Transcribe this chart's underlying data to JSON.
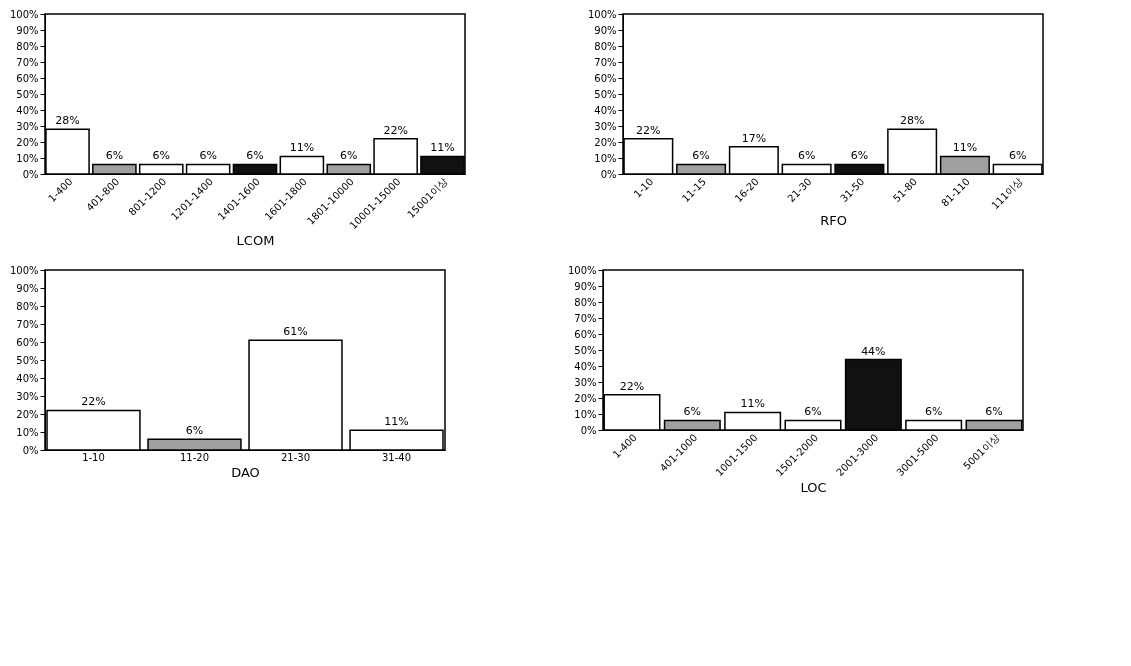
{
  "chart_data": [
    {
      "type": "bar",
      "xlabel": "LCOM",
      "categories": [
        "1-400",
        "401-800",
        "801-1200",
        "1201-1400",
        "1401-1600",
        "1601-1800",
        "1801-10000",
        "10001-15000",
        "15001이상"
      ],
      "values": [
        28,
        6,
        6,
        6,
        6,
        11,
        6,
        22,
        11
      ],
      "colors": [
        "#ffffff",
        "#a0a0a0",
        "#ffffff",
        "#ffffff",
        "#111111",
        "#ffffff",
        "#a0a0a0",
        "#ffffff",
        "#111111"
      ],
      "value_labels": [
        "28%",
        "6%",
        "6%",
        "6%",
        "6%",
        "11%",
        "6%",
        "22%",
        "11%"
      ],
      "ylim": [
        0,
        100
      ],
      "yticks": [
        {
          "value": 0,
          "label": "0%"
        },
        {
          "value": 10,
          "label": "10%"
        },
        {
          "value": 20,
          "label": "20%"
        },
        {
          "value": 30,
          "label": "30%"
        },
        {
          "value": 40,
          "label": "40%"
        },
        {
          "value": 50,
          "label": "50%"
        },
        {
          "value": 60,
          "label": "60%"
        },
        {
          "value": 70,
          "label": "70%"
        },
        {
          "value": 80,
          "label": "80%"
        },
        {
          "value": 90,
          "label": "90%"
        },
        {
          "value": 100,
          "label": "100%"
        }
      ],
      "grid": false,
      "legend": false
    },
    {
      "type": "bar",
      "xlabel": "RFO",
      "categories": [
        "1-10",
        "11-15",
        "16-20",
        "21-30",
        "31-50",
        "51-80",
        "81-110",
        "111이상"
      ],
      "values": [
        22,
        6,
        17,
        6,
        6,
        28,
        11,
        6
      ],
      "colors": [
        "#ffffff",
        "#a0a0a0",
        "#ffffff",
        "#ffffff",
        "#111111",
        "#ffffff",
        "#a0a0a0",
        "#ffffff"
      ],
      "value_labels": [
        "22%",
        "6%",
        "17%",
        "6%",
        "6%",
        "28%",
        "11%",
        "6%"
      ],
      "ylim": [
        0,
        100
      ],
      "yticks": [
        {
          "value": 0,
          "label": "0%"
        },
        {
          "value": 10,
          "label": "10%"
        },
        {
          "value": 20,
          "label": "20%"
        },
        {
          "value": 30,
          "label": "30%"
        },
        {
          "value": 40,
          "label": "40%"
        },
        {
          "value": 50,
          "label": "50%"
        },
        {
          "value": 60,
          "label": "60%"
        },
        {
          "value": 70,
          "label": "70%"
        },
        {
          "value": 80,
          "label": "80%"
        },
        {
          "value": 90,
          "label": "90%"
        },
        {
          "value": 100,
          "label": "100%"
        }
      ],
      "grid": false,
      "legend": false
    },
    {
      "type": "bar",
      "xlabel": "DAO",
      "categories": [
        "1-10",
        "11-20",
        "21-30",
        "31-40"
      ],
      "values": [
        22,
        6,
        61,
        11
      ],
      "colors": [
        "#ffffff",
        "#a0a0a0",
        "#ffffff",
        "#ffffff"
      ],
      "value_labels": [
        "22%",
        "6%",
        "61%",
        "11%"
      ],
      "ylim": [
        0,
        100
      ],
      "yticks": [
        {
          "value": 0,
          "label": "0%"
        },
        {
          "value": 10,
          "label": "10%"
        },
        {
          "value": 20,
          "label": "20%"
        },
        {
          "value": 30,
          "label": "30%"
        },
        {
          "value": 40,
          "label": "40%"
        },
        {
          "value": 50,
          "label": "50%"
        },
        {
          "value": 60,
          "label": "60%"
        },
        {
          "value": 70,
          "label": "70%"
        },
        {
          "value": 80,
          "label": "80%"
        },
        {
          "value": 90,
          "label": "90%"
        },
        {
          "value": 100,
          "label": "100%"
        }
      ],
      "grid": false,
      "legend": false
    },
    {
      "type": "bar",
      "xlabel": "LOC",
      "categories": [
        "1-400",
        "401-1000",
        "1001-1500",
        "1501-2000",
        "2001-3000",
        "3001-5000",
        "5001이상"
      ],
      "values": [
        22,
        6,
        11,
        6,
        44,
        6,
        6
      ],
      "colors": [
        "#ffffff",
        "#a0a0a0",
        "#ffffff",
        "#ffffff",
        "#111111",
        "#ffffff",
        "#a0a0a0"
      ],
      "value_labels": [
        "22%",
        "6%",
        "11%",
        "6%",
        "44%",
        "6%",
        "6%"
      ],
      "ylim": [
        0,
        100
      ],
      "yticks": [
        {
          "value": 0,
          "label": "0%"
        },
        {
          "value": 10,
          "label": "10%"
        },
        {
          "value": 20,
          "label": "20%"
        },
        {
          "value": 30,
          "label": "30%"
        },
        {
          "value": 40,
          "label": "40%"
        },
        {
          "value": 50,
          "label": "50%"
        },
        {
          "value": 60,
          "label": "60%"
        },
        {
          "value": 70,
          "label": "70%"
        },
        {
          "value": 80,
          "label": "80%"
        },
        {
          "value": 90,
          "label": "90%"
        },
        {
          "value": 100,
          "label": "100%"
        }
      ],
      "grid": false,
      "legend": false
    }
  ]
}
